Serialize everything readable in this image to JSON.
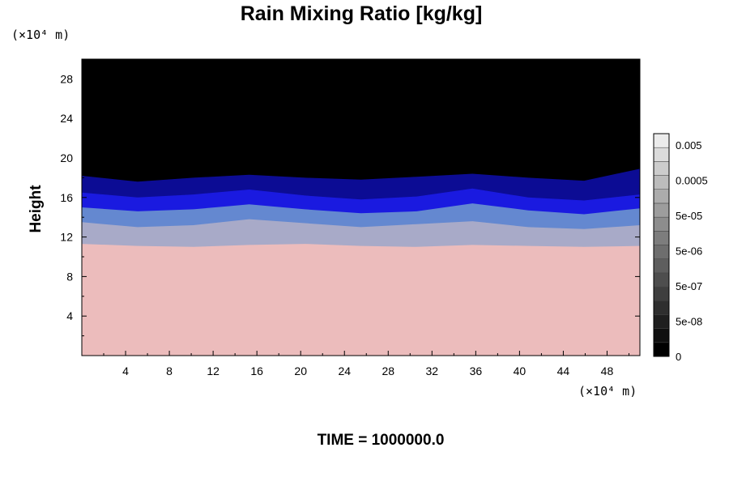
{
  "chart_data": {
    "type": "heatmap",
    "title": "Rain Mixing Ratio [kg/kg]",
    "ylabel": "Height",
    "xlabel": "",
    "x_unit": "(×10⁴ m)",
    "y_unit": "(×10⁴ m)",
    "xlim": [
      0,
      51
    ],
    "ylim": [
      0,
      30
    ],
    "x_ticks": [
      "4",
      "8",
      "12",
      "16",
      "20",
      "24",
      "28",
      "32",
      "36",
      "40",
      "44",
      "48"
    ],
    "y_ticks": [
      "4",
      "8",
      "12",
      "16",
      "20",
      "24",
      "28"
    ],
    "x_tick_values": [
      4,
      8,
      12,
      16,
      20,
      24,
      28,
      32,
      36,
      40,
      44,
      48
    ],
    "y_tick_values": [
      4,
      8,
      12,
      16,
      20,
      24,
      28
    ],
    "layers": [
      {
        "name": "pink",
        "color": "#ecbcbc",
        "top": [
          11.3,
          11.1,
          11.0,
          11.2,
          11.3,
          11.1,
          11.0,
          11.2,
          11.1,
          11.0,
          11.1
        ]
      },
      {
        "name": "grey-blue",
        "color": "#a8aac8",
        "top": [
          13.5,
          13.0,
          13.2,
          13.8,
          13.4,
          13.0,
          13.3,
          13.6,
          13.0,
          12.8,
          13.2
        ]
      },
      {
        "name": "light-blue",
        "color": "#6488d0",
        "top": [
          15.0,
          14.6,
          14.8,
          15.3,
          14.8,
          14.4,
          14.6,
          15.4,
          14.7,
          14.3,
          14.9
        ]
      },
      {
        "name": "blue",
        "color": "#1a1ae0",
        "top": [
          16.5,
          16.0,
          16.3,
          16.8,
          16.2,
          15.8,
          16.1,
          16.9,
          16.0,
          15.7,
          16.3
        ]
      },
      {
        "name": "dark-blue",
        "color": "#0c0c94",
        "top": [
          18.2,
          17.6,
          18.0,
          18.3,
          18.0,
          17.8,
          18.1,
          18.4,
          18.0,
          17.7,
          18.9
        ]
      }
    ],
    "background_color": "#000000",
    "colorbar": {
      "labels": [
        "0.005",
        "0.0005",
        "5e-05",
        "5e-06",
        "5e-07",
        "5e-08",
        "0"
      ],
      "levels": 16
    },
    "footer": "TIME = 1000000.0"
  }
}
